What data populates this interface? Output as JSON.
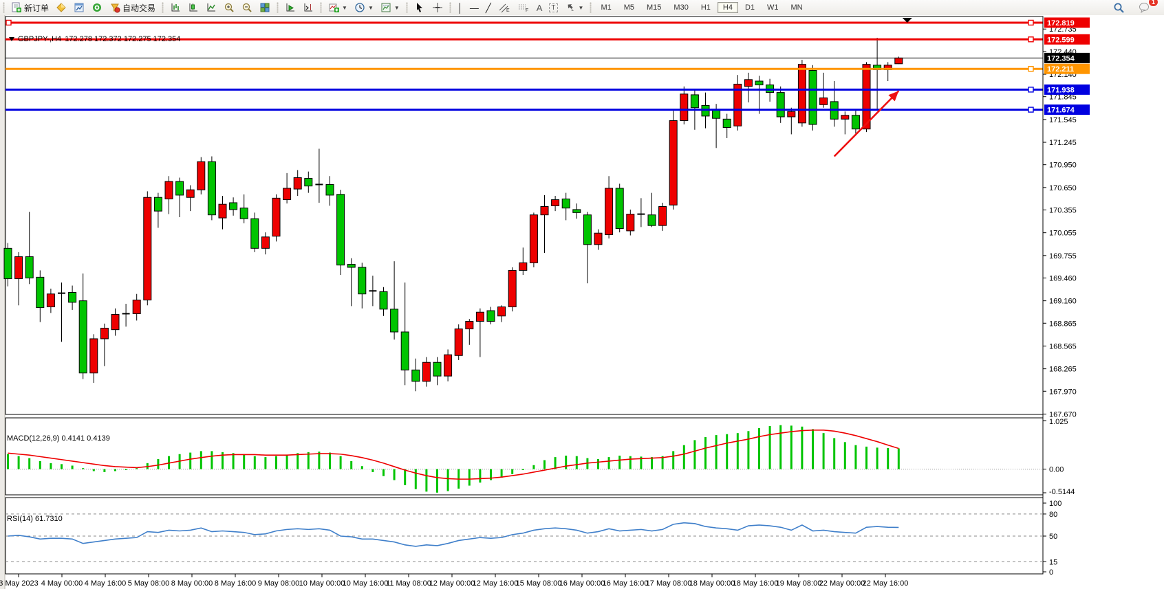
{
  "toolbar": {
    "new_order": "新订单",
    "auto_trading": "自动交易",
    "timeframes": [
      "M1",
      "M5",
      "M15",
      "M30",
      "H1",
      "H4",
      "D1",
      "W1",
      "MN"
    ],
    "active_timeframe": "H4",
    "badge": "1",
    "icons": [
      "new-order-icon",
      "symbols-icon",
      "chart-window-icon",
      "mql-icon",
      "auto-trading-icon",
      "bar-chart-icon",
      "candlestick-chart-icon",
      "line-chart-icon",
      "zoom-in-icon",
      "zoom-out-icon",
      "tile-windows-icon",
      "auto-scroll-icon",
      "chart-shift-icon",
      "indicators-icon",
      "periods-icon",
      "templates-icon",
      "cursor-icon",
      "crosshair-icon",
      "vline-icon",
      "hline-icon",
      "trendline-icon",
      "channel-icon",
      "fibonacci-icon",
      "text-icon",
      "label-icon",
      "arrows-icon",
      "search-icon",
      "chat-icon"
    ]
  },
  "chart_data": {
    "type": "candlestick",
    "symbol_period": "GBPJPY-,H4",
    "ohlc_text": "172.278 172.372 172.275 172.354",
    "ohlc": {
      "open": "172.278",
      "high": "172.372",
      "low": "172.275",
      "close": "172.354"
    },
    "colors": {
      "bull": "#ee0000",
      "bear": "#00c400",
      "wick": "#000000",
      "macd_bar": "#00c400",
      "macd_signal": "#ee0000",
      "rsi_line": "#3f7fca"
    },
    "price_axis": {
      "max": 172.9,
      "min": 167.645,
      "ticks": [
        "172.735",
        "172.440",
        "172.140",
        "171.845",
        "171.545",
        "171.245",
        "170.950",
        "170.650",
        "170.355",
        "170.055",
        "169.755",
        "169.460",
        "169.160",
        "168.865",
        "168.565",
        "168.265",
        "167.970",
        "167.670"
      ]
    },
    "hlines": [
      {
        "price": 172.819,
        "label": "172.819",
        "color": "#ee0000",
        "width": 3,
        "handles": true
      },
      {
        "price": 172.599,
        "label": "172.599",
        "color": "#ee0000",
        "width": 3,
        "handles": true
      },
      {
        "price": 172.354,
        "label": "172.354",
        "color": "#000000",
        "width": 1,
        "handles": false
      },
      {
        "price": 172.211,
        "label": "172.211",
        "color": "#ff9500",
        "width": 3,
        "handles": true
      },
      {
        "price": 171.938,
        "label": "171.938",
        "color": "#0000e0",
        "width": 3,
        "handles": true
      },
      {
        "price": 171.674,
        "label": "171.674",
        "color": "#0000e0",
        "width": 3,
        "handles": true
      }
    ],
    "time_labels": [
      "3 May 2023",
      "4 May 00:00",
      "4 May 16:00",
      "5 May 08:00",
      "8 May 00:00",
      "8 May 16:00",
      "9 May 08:00",
      "10 May 00:00",
      "10 May 16:00",
      "11 May 08:00",
      "12 May 00:00",
      "12 May 16:00",
      "15 May 08:00",
      "16 May 00:00",
      "16 May 16:00",
      "17 May 08:00",
      "18 May 00:00",
      "18 May 16:00",
      "19 May 08:00",
      "22 May 00:00",
      "22 May 16:00"
    ],
    "candles": [
      [
        169.85,
        169.92,
        169.35,
        169.45
      ],
      [
        169.45,
        169.8,
        169.1,
        169.74
      ],
      [
        169.74,
        170.33,
        169.38,
        169.46
      ],
      [
        169.47,
        169.56,
        168.88,
        169.07
      ],
      [
        169.08,
        169.32,
        169.0,
        169.25
      ],
      [
        169.25,
        169.4,
        168.62,
        169.26
      ],
      [
        169.27,
        169.36,
        169.04,
        169.14
      ],
      [
        169.16,
        169.52,
        168.13,
        168.21
      ],
      [
        168.21,
        168.72,
        168.08,
        168.66
      ],
      [
        168.66,
        168.86,
        168.3,
        168.8
      ],
      [
        168.78,
        169.06,
        168.7,
        168.98
      ],
      [
        168.98,
        169.12,
        168.82,
        168.99
      ],
      [
        168.99,
        169.25,
        168.9,
        169.17
      ],
      [
        169.17,
        170.6,
        169.1,
        170.52
      ],
      [
        170.52,
        170.58,
        170.12,
        170.34
      ],
      [
        170.5,
        170.8,
        170.3,
        170.73
      ],
      [
        170.73,
        170.78,
        170.26,
        170.55
      ],
      [
        170.52,
        170.68,
        170.34,
        170.62
      ],
      [
        170.62,
        171.05,
        170.56,
        170.99
      ],
      [
        170.99,
        171.06,
        170.22,
        170.29
      ],
      [
        170.25,
        170.54,
        170.1,
        170.43
      ],
      [
        170.45,
        170.52,
        170.28,
        170.36
      ],
      [
        170.38,
        170.56,
        170.18,
        170.24
      ],
      [
        170.24,
        170.32,
        169.8,
        169.85
      ],
      [
        169.85,
        170.06,
        169.77,
        170.0
      ],
      [
        170.01,
        170.56,
        169.94,
        170.51
      ],
      [
        170.49,
        170.84,
        170.44,
        170.64
      ],
      [
        170.63,
        170.88,
        170.54,
        170.78
      ],
      [
        170.77,
        170.86,
        170.58,
        170.67
      ],
      [
        170.68,
        171.16,
        170.45,
        170.69
      ],
      [
        170.69,
        170.8,
        170.41,
        170.55
      ],
      [
        170.56,
        170.62,
        169.5,
        169.63
      ],
      [
        169.64,
        169.72,
        169.09,
        169.6
      ],
      [
        169.6,
        169.66,
        169.06,
        169.25
      ],
      [
        169.28,
        169.49,
        169.09,
        169.29
      ],
      [
        169.28,
        169.34,
        168.96,
        169.05
      ],
      [
        169.05,
        169.68,
        168.65,
        168.75
      ],
      [
        168.75,
        169.4,
        168.05,
        168.25
      ],
      [
        168.25,
        168.4,
        167.97,
        168.1
      ],
      [
        168.1,
        168.42,
        168.03,
        168.35
      ],
      [
        168.35,
        168.42,
        168.05,
        168.17
      ],
      [
        168.17,
        168.52,
        168.1,
        168.45
      ],
      [
        168.44,
        168.85,
        168.38,
        168.79
      ],
      [
        168.79,
        168.92,
        168.58,
        168.89
      ],
      [
        168.89,
        169.06,
        168.42,
        169.01
      ],
      [
        169.03,
        169.08,
        168.85,
        168.89
      ],
      [
        168.96,
        169.1,
        168.88,
        169.08
      ],
      [
        169.08,
        169.6,
        169.02,
        169.56
      ],
      [
        169.56,
        169.86,
        169.5,
        169.66
      ],
      [
        169.66,
        170.32,
        169.6,
        170.29
      ],
      [
        170.29,
        170.55,
        169.79,
        170.4
      ],
      [
        170.41,
        170.54,
        170.34,
        170.49
      ],
      [
        170.5,
        170.58,
        170.22,
        170.38
      ],
      [
        170.36,
        170.44,
        170.24,
        170.32
      ],
      [
        170.29,
        170.33,
        169.39,
        169.9
      ],
      [
        169.9,
        170.1,
        169.83,
        170.05
      ],
      [
        170.03,
        170.8,
        169.98,
        170.64
      ],
      [
        170.64,
        170.7,
        170.06,
        170.11
      ],
      [
        170.08,
        170.36,
        170.02,
        170.3
      ],
      [
        170.3,
        170.51,
        170.13,
        170.3
      ],
      [
        170.29,
        170.58,
        170.13,
        170.15
      ],
      [
        170.15,
        170.45,
        170.08,
        170.4
      ],
      [
        170.42,
        171.66,
        170.36,
        171.53
      ],
      [
        171.53,
        171.98,
        171.48,
        171.88
      ],
      [
        171.87,
        171.95,
        171.41,
        171.7
      ],
      [
        171.73,
        171.9,
        171.43,
        171.59
      ],
      [
        171.68,
        171.75,
        171.17,
        171.56
      ],
      [
        171.55,
        171.62,
        171.3,
        171.44
      ],
      [
        171.46,
        172.13,
        171.4,
        172.01
      ],
      [
        171.98,
        172.16,
        171.77,
        172.07
      ],
      [
        172.05,
        172.12,
        171.62,
        172.0
      ],
      [
        172.0,
        172.08,
        171.78,
        171.9
      ],
      [
        171.9,
        171.98,
        171.5,
        171.58
      ],
      [
        171.58,
        171.7,
        171.35,
        171.65
      ],
      [
        171.5,
        172.33,
        171.45,
        172.27
      ],
      [
        172.19,
        172.26,
        171.4,
        171.48
      ],
      [
        171.74,
        172.16,
        171.7,
        171.83
      ],
      [
        171.78,
        172.05,
        171.45,
        171.55
      ],
      [
        171.55,
        171.65,
        171.35,
        171.6
      ],
      [
        171.6,
        171.66,
        171.36,
        171.42
      ],
      [
        171.42,
        172.3,
        171.38,
        172.27
      ],
      [
        172.26,
        172.62,
        171.68,
        172.2
      ],
      [
        172.2,
        172.3,
        172.05,
        172.26
      ],
      [
        172.278,
        172.372,
        172.275,
        172.354
      ]
    ],
    "macd": {
      "display": "MACD(12,26,9) 0.4141 0.4139",
      "values": {
        "macd": "0.4141",
        "signal": "0.4139"
      },
      "max": 1.025,
      "min": -0.5144,
      "ticks": [
        "1.025",
        "0.00",
        "-0.5144"
      ],
      "histogram": [
        0.3,
        0.26,
        0.22,
        0.16,
        0.12,
        0.1,
        0.07,
        0.02,
        -0.04,
        -0.06,
        -0.04,
        -0.02,
        0.02,
        0.12,
        0.2,
        0.26,
        0.3,
        0.33,
        0.36,
        0.36,
        0.34,
        0.32,
        0.3,
        0.26,
        0.24,
        0.26,
        0.29,
        0.32,
        0.34,
        0.35,
        0.33,
        0.26,
        0.16,
        0.06,
        -0.06,
        -0.14,
        -0.22,
        -0.32,
        -0.4,
        -0.45,
        -0.47,
        -0.44,
        -0.39,
        -0.33,
        -0.27,
        -0.22,
        -0.17,
        -0.1,
        -0.02,
        0.08,
        0.18,
        0.24,
        0.27,
        0.26,
        0.22,
        0.2,
        0.24,
        0.27,
        0.26,
        0.25,
        0.24,
        0.26,
        0.36,
        0.48,
        0.58,
        0.64,
        0.68,
        0.7,
        0.72,
        0.76,
        0.82,
        0.86,
        0.88,
        0.87,
        0.85,
        0.8,
        0.72,
        0.62,
        0.54,
        0.48,
        0.45,
        0.43,
        0.42,
        0.4141
      ],
      "signal": [
        0.32,
        0.3,
        0.28,
        0.25,
        0.22,
        0.19,
        0.16,
        0.13,
        0.1,
        0.07,
        0.05,
        0.04,
        0.03,
        0.05,
        0.08,
        0.12,
        0.16,
        0.2,
        0.23,
        0.26,
        0.28,
        0.29,
        0.29,
        0.29,
        0.28,
        0.28,
        0.28,
        0.29,
        0.3,
        0.31,
        0.31,
        0.3,
        0.27,
        0.23,
        0.18,
        0.12,
        0.05,
        -0.02,
        -0.08,
        -0.13,
        -0.17,
        -0.19,
        -0.2,
        -0.2,
        -0.19,
        -0.18,
        -0.16,
        -0.13,
        -0.1,
        -0.06,
        -0.02,
        0.02,
        0.06,
        0.09,
        0.12,
        0.14,
        0.16,
        0.18,
        0.2,
        0.21,
        0.22,
        0.23,
        0.26,
        0.3,
        0.36,
        0.42,
        0.47,
        0.52,
        0.56,
        0.6,
        0.65,
        0.69,
        0.72,
        0.75,
        0.77,
        0.78,
        0.78,
        0.76,
        0.72,
        0.67,
        0.61,
        0.55,
        0.48,
        0.4139
      ]
    },
    "rsi": {
      "display": "RSI(14) 61.7310",
      "value": "61.7310",
      "ticks": [
        "100",
        "80",
        "50",
        "15",
        "0"
      ],
      "levels": [
        80,
        50,
        15
      ],
      "series": [
        50,
        51,
        49,
        46,
        47,
        47,
        46,
        40,
        42,
        44,
        46,
        47,
        48,
        56,
        55,
        58,
        57,
        58,
        61,
        56,
        57,
        56,
        55,
        52,
        53,
        57,
        59,
        60,
        59,
        60,
        58,
        50,
        49,
        46,
        46,
        44,
        42,
        38,
        36,
        38,
        37,
        40,
        44,
        46,
        48,
        47,
        48,
        52,
        54,
        58,
        60,
        61,
        60,
        58,
        54,
        56,
        60,
        57,
        58,
        59,
        57,
        59,
        66,
        68,
        67,
        63,
        61,
        60,
        58,
        64,
        65,
        64,
        62,
        58,
        65,
        57,
        58,
        56,
        55,
        54,
        62,
        63,
        62,
        61.73
      ]
    },
    "annotations": {
      "arrow": {
        "from_bar": 77,
        "from_price": 171.06,
        "to_bar": 83,
        "to_price": 171.92,
        "color": "#ee1111"
      },
      "top_marker": {
        "x_bar": 83.8,
        "glyph": "down-triangle",
        "color": "#000000"
      }
    }
  }
}
